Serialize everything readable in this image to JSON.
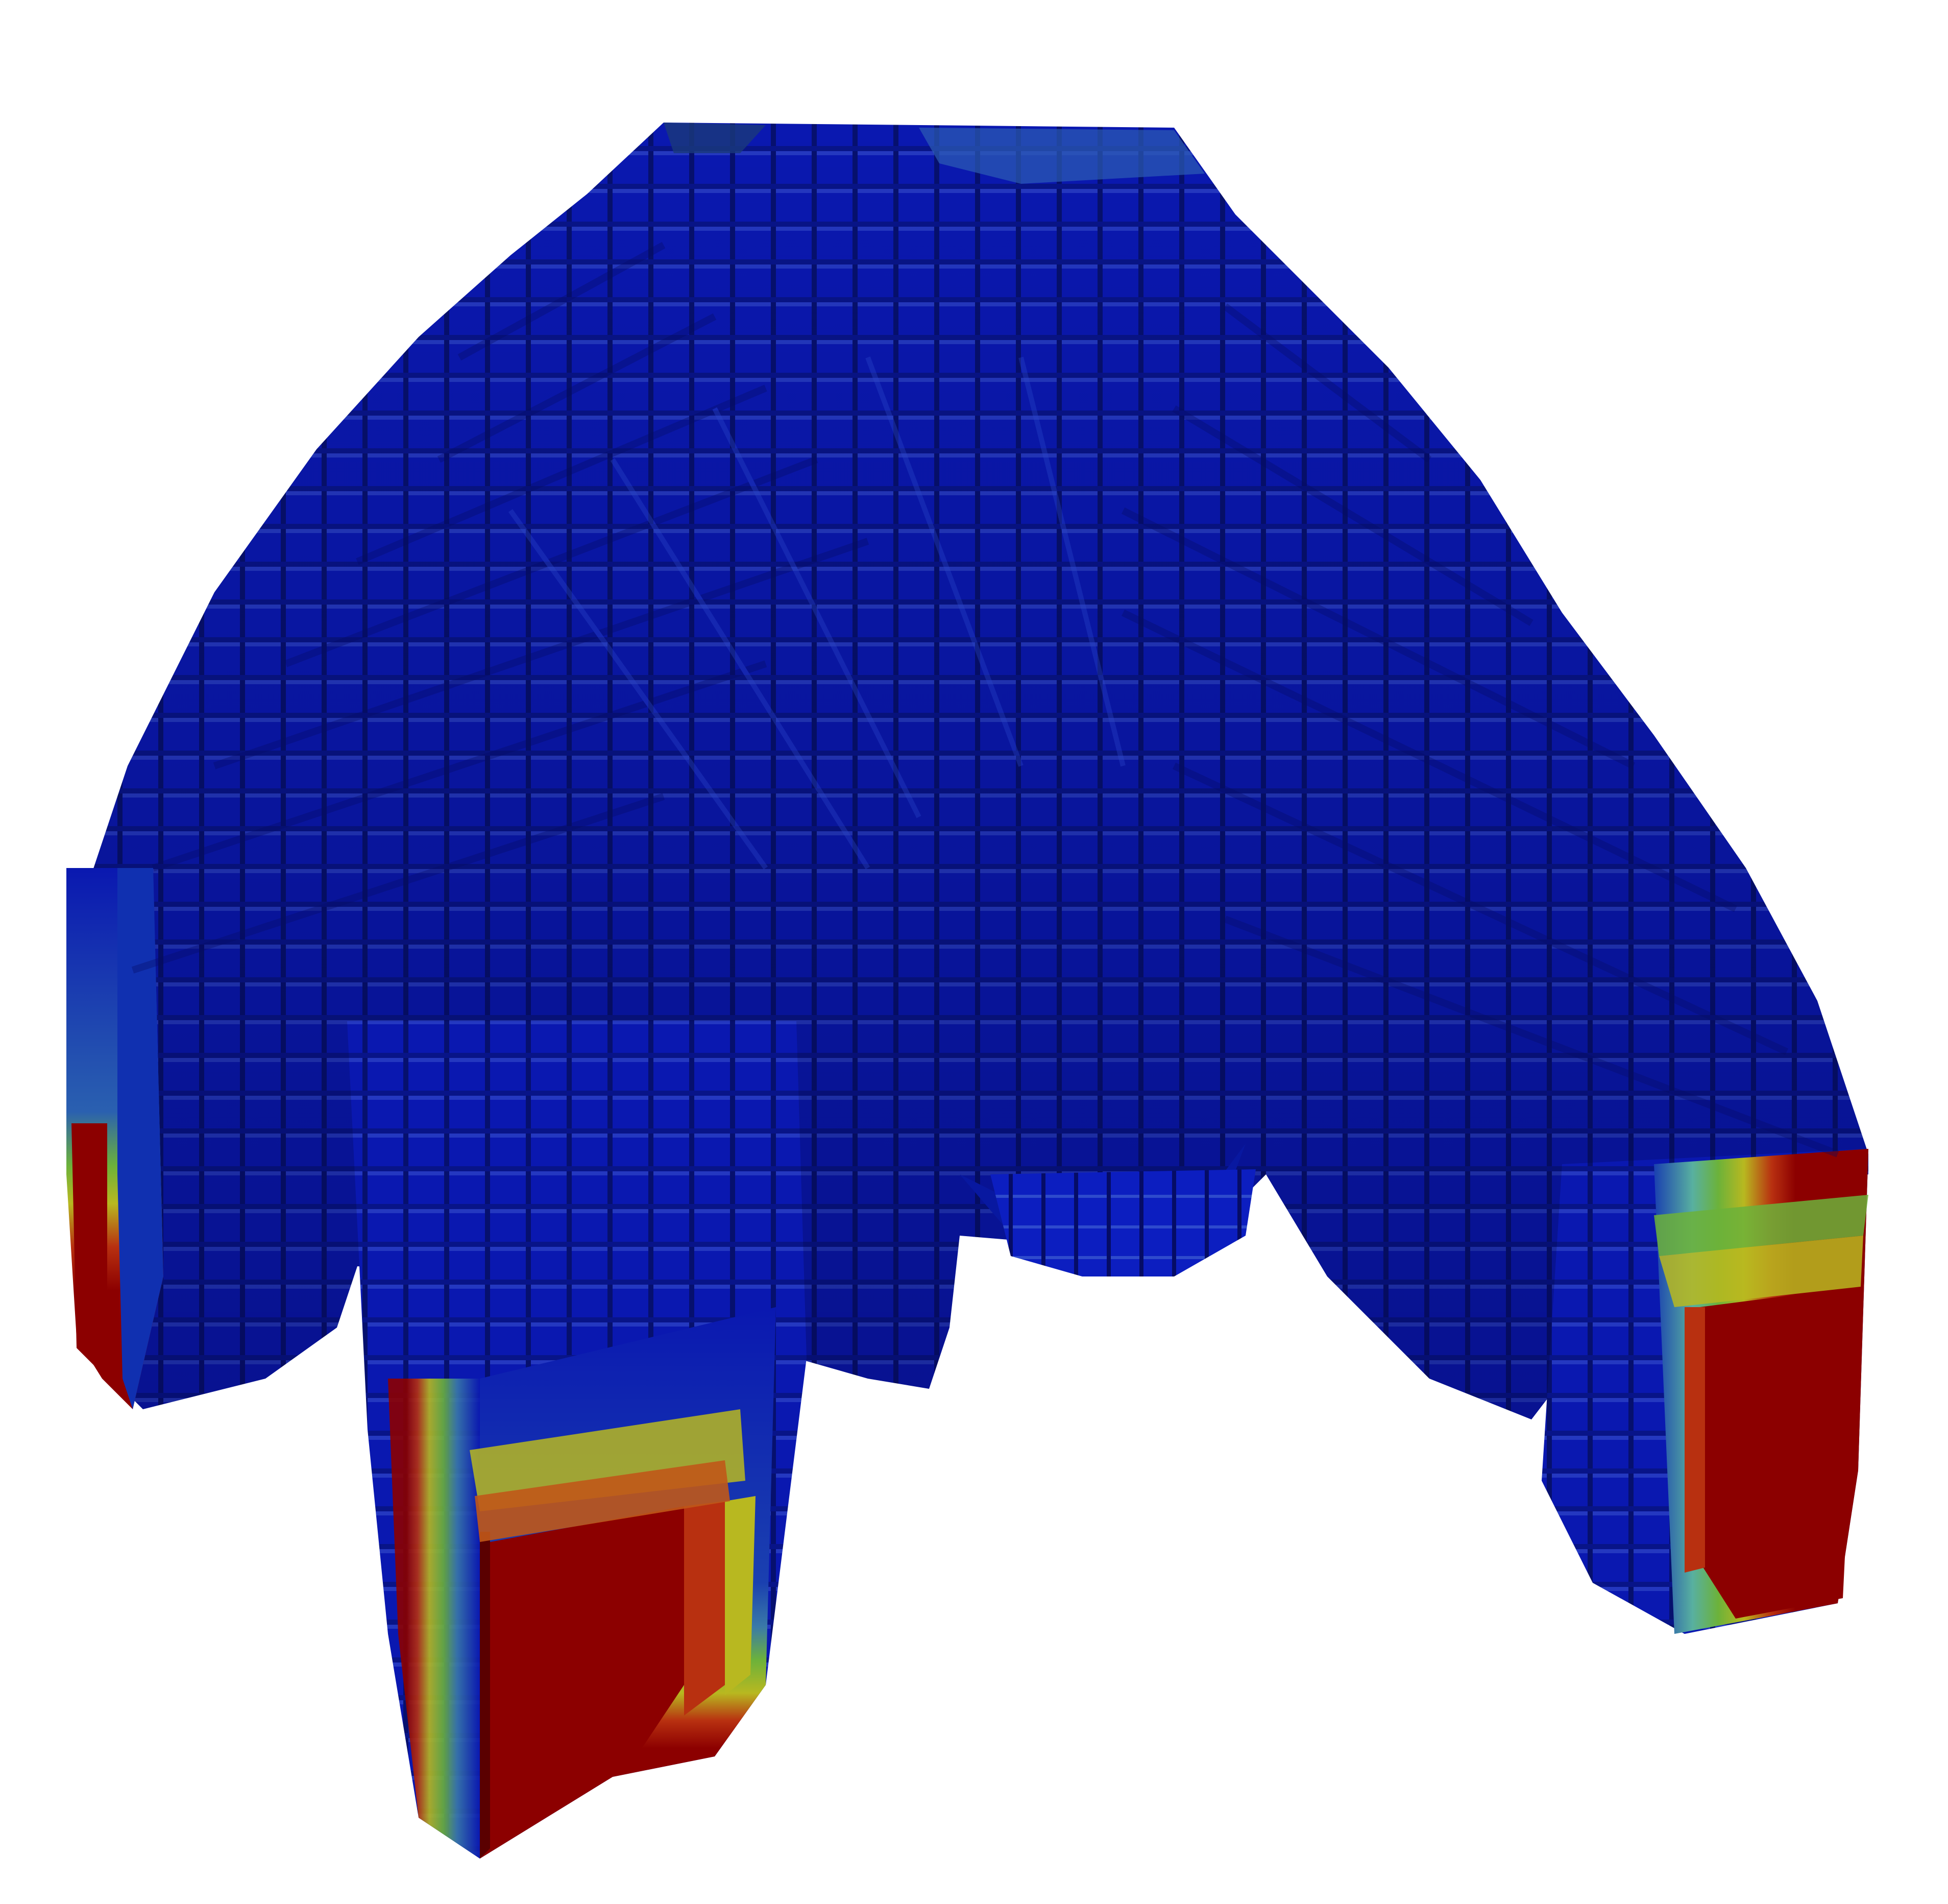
{
  "scene": {
    "background": "#ffffff",
    "object": "voxelized-dome-with-four-legs",
    "colormap": [
      "#00007f",
      "#0000c8",
      "#1030b0",
      "#3a6aa8",
      "#58b0a0",
      "#6cb23a",
      "#b8b820",
      "#d08020",
      "#b83010",
      "#8c0000"
    ]
  }
}
